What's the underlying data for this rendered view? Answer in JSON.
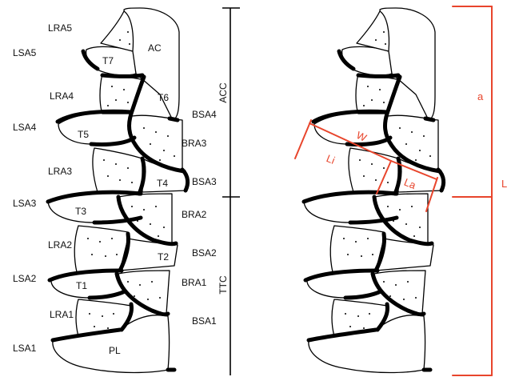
{
  "left_labels": {
    "lra5": "LRA5",
    "lsa5": "LSA5",
    "lra4": "LRA4",
    "lsa4": "LSA4",
    "lra3": "LRA3",
    "lsa3": "LSA3",
    "lra2": "LRA2",
    "lsa2": "LSA2",
    "lra1": "LRA1",
    "lsa1": "LSA1"
  },
  "segment_labels": {
    "ac": "AC",
    "t7": "T7",
    "t6": "T6",
    "t5": "T5",
    "t4": "T4",
    "t3": "T3",
    "t2": "T2",
    "t1": "T1",
    "pl": "PL"
  },
  "right_labels": {
    "bsa4": "BSA4",
    "bra3": "BRA3",
    "bsa3": "BSA3",
    "bra2": "BRA2",
    "bsa2": "BSA2",
    "bra1": "BRA1",
    "bsa1": "BSA1"
  },
  "region_labels": {
    "acc": "ACC",
    "ttc": "TTC"
  },
  "measurements": {
    "w": "W",
    "li": "Li",
    "la": "La",
    "a": "a",
    "l": "L"
  },
  "colors": {
    "outline": "#000000",
    "measurement": "#e8452c",
    "fill": "#ffffff"
  }
}
